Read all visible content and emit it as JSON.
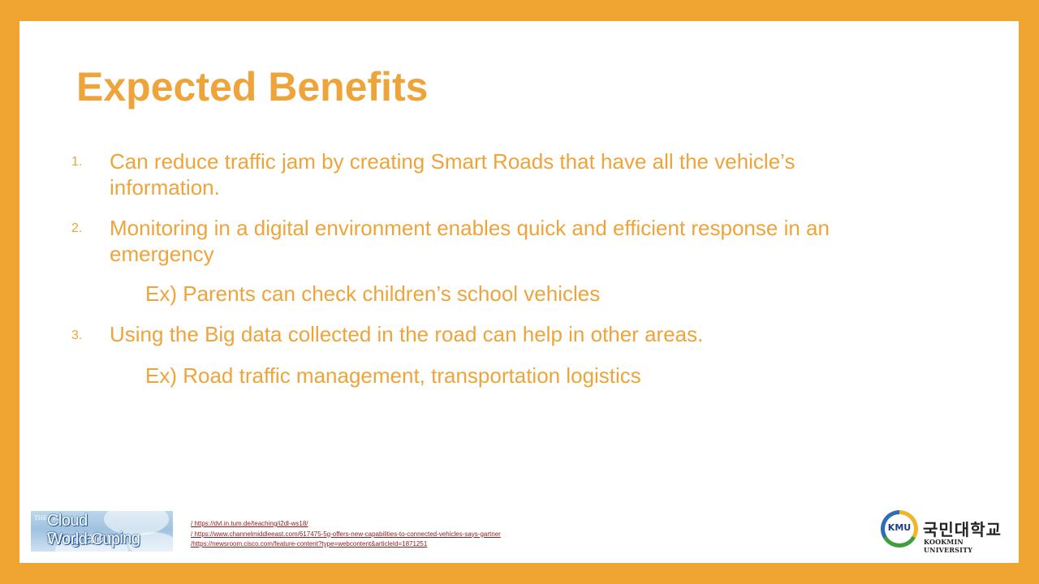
{
  "slide": {
    "title": "Expected Benefits",
    "items": [
      {
        "number": "1.",
        "text": "Can reduce traffic jam by creating Smart Roads that have all the vehicle’s information."
      },
      {
        "number": "2.",
        "text": "Monitoring in a digital environment enables quick and efficient response in an emergency",
        "sub": "Ex) Parents can check children’s school vehicles"
      },
      {
        "number": "3.",
        "text": "Using the Big data collected in the road can help in other areas.",
        "sub": "Ex) Road traffic management, transportation logistics"
      }
    ]
  },
  "footer": {
    "left_logo": {
      "small": "THE 7TH",
      "line1": "Cloud Programming",
      "line2": "World Cup"
    },
    "references": [
      "/ https://dvl.in.tum.de/teaching/i2dl-ws18/",
      "/ https://www.channelmiddleeast.com/617475-5g-offers-new-capabilities-to-connected-vehicles-says-gartner",
      "/https://newsroom.cisco.com/feature-content?type=webcontent&articleId=1871251"
    ],
    "right_logo": {
      "abbr": "KMU",
      "korean": "국민대학교",
      "english": "KOOKMIN UNIVERSITY"
    }
  },
  "colors": {
    "frame": "#f0a431",
    "accent_text": "#eea43a",
    "link": "#8b1c1c"
  }
}
